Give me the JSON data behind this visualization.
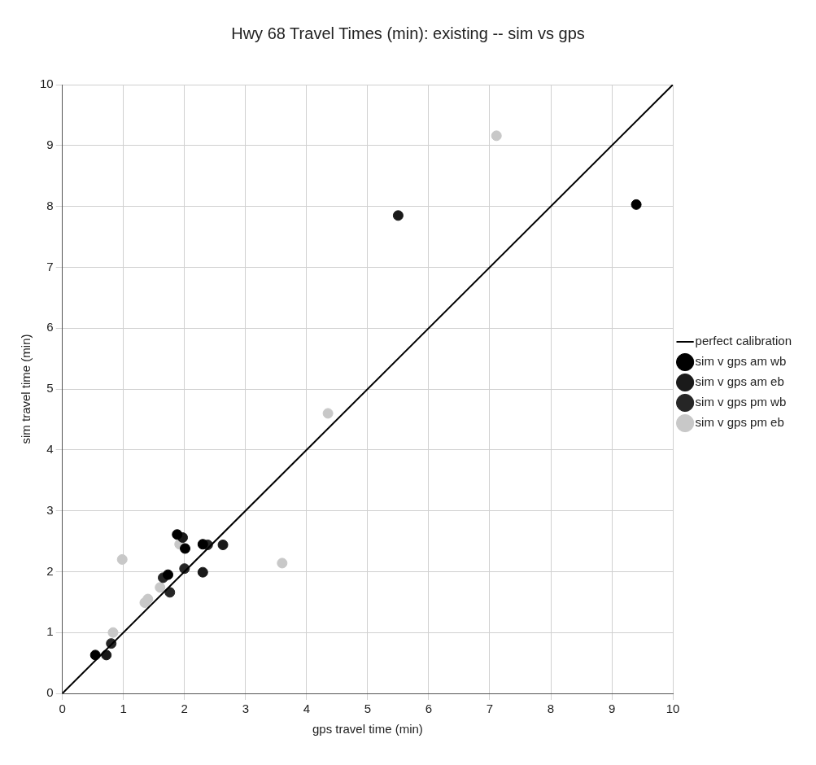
{
  "chart_data": {
    "type": "scatter",
    "title": "Hwy 68 Travel Times (min): existing -- sim vs gps",
    "xlabel": "gps travel time (min)",
    "ylabel": "sim travel time (min)",
    "xlim": [
      0,
      10
    ],
    "ylim": [
      0,
      10
    ],
    "xticks": [
      0,
      1,
      2,
      3,
      4,
      5,
      6,
      7,
      8,
      9,
      10
    ],
    "yticks": [
      0,
      1,
      2,
      3,
      4,
      5,
      6,
      7,
      8,
      9,
      10
    ],
    "grid": true,
    "legend": "right",
    "marker": "circle",
    "series": [
      {
        "name": "perfect calibration",
        "type": "line",
        "color": "#000000",
        "line_style": "solid",
        "marker": "none",
        "x": [
          0,
          10
        ],
        "values": [
          0,
          10
        ]
      },
      {
        "name": "sim v gps am wb",
        "color": "#000000",
        "x": [
          0.54,
          1.88,
          2.3,
          2.01,
          9.4,
          1.73
        ],
        "values": [
          0.63,
          2.61,
          2.45,
          2.38,
          8.03,
          1.95
        ]
      },
      {
        "name": "sim v gps am eb",
        "color": "#1a1a1a",
        "x": [
          0.72,
          1.97,
          2.63,
          2.3,
          5.5
        ],
        "values": [
          0.63,
          2.56,
          2.44,
          1.99,
          7.85
        ]
      },
      {
        "name": "sim v gps pm wb",
        "color": "#262626",
        "x": [
          0.8,
          2.0,
          1.65,
          1.76,
          2.38
        ],
        "values": [
          0.82,
          2.05,
          1.9,
          1.66,
          2.44
        ]
      },
      {
        "name": "sim v gps pm eb",
        "color": "#c8c8c8",
        "x": [
          0.98,
          3.6,
          0.83,
          1.35,
          1.4,
          1.6,
          1.92,
          4.35,
          7.11
        ],
        "values": [
          2.2,
          2.14,
          1.0,
          1.49,
          1.55,
          1.74,
          2.45,
          4.6,
          9.16
        ]
      }
    ]
  }
}
